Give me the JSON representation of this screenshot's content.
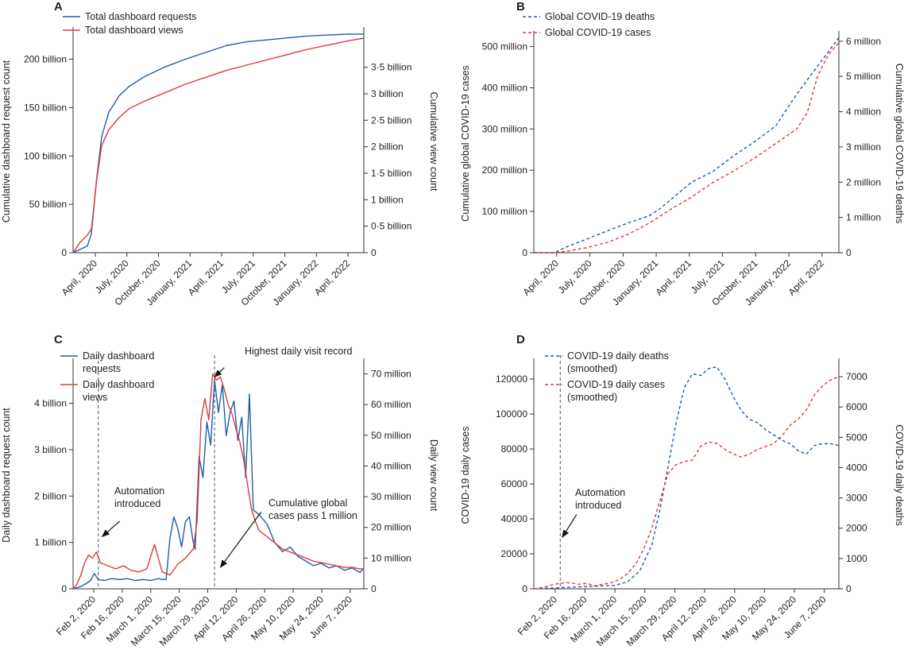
{
  "chart_data": [
    {
      "panel": "A",
      "type": "line",
      "ylabel": "Cumulative dashboard request count",
      "ylabel_right": "Cumulative view count",
      "xticks": [
        "April, 2020",
        "July, 2020",
        "October, 2020",
        "January, 2021",
        "April, 2021",
        "July, 2021",
        "October, 2021",
        "January, 2022",
        "April, 2022"
      ],
      "xlim": [
        0,
        28.5
      ],
      "ylim": [
        0,
        230
      ],
      "yticks": [
        {
          "v": 0,
          "label": "0"
        },
        {
          "v": 50,
          "label": "50 billion"
        },
        {
          "v": 100,
          "label": "100 billion"
        },
        {
          "v": 150,
          "label": "150 billion"
        },
        {
          "v": 200,
          "label": "200 billion"
        }
      ],
      "ylim_right": [
        0,
        4.2
      ],
      "yticks_right": [
        {
          "v": 0,
          "label": "0"
        },
        {
          "v": 0.5,
          "label": "0·5 billion"
        },
        {
          "v": 1,
          "label": "1 billion"
        },
        {
          "v": 1.5,
          "label": "1·5 billion"
        },
        {
          "v": 2,
          "label": "2 billion"
        },
        {
          "v": 2.5,
          "label": "2·5 billion"
        },
        {
          "v": 3,
          "label": "3 billion"
        },
        {
          "v": 3.5,
          "label": "3·5 billion"
        }
      ],
      "series": [
        {
          "name": "Total dashboard requests",
          "color": "#1f5fa8",
          "dash": "",
          "axis": "left",
          "x": [
            0,
            0.8,
            1.4,
            1.8,
            2.3,
            2.8,
            3.5,
            4.5,
            5.5,
            7,
            9,
            11,
            13,
            15,
            17,
            19,
            21,
            23,
            25,
            27,
            28.5
          ],
          "y": [
            0,
            4,
            7,
            20,
            75,
            120,
            145,
            162,
            172,
            182,
            192,
            200,
            207,
            214,
            218,
            220,
            222,
            224,
            225,
            226,
            226
          ]
        },
        {
          "name": "Total dashboard views",
          "color": "#e03a3a",
          "dash": "",
          "axis": "right",
          "x": [
            0,
            0.7,
            1.4,
            1.8,
            2.3,
            2.8,
            3.5,
            4.5,
            5.5,
            7,
            9,
            11,
            13,
            15,
            17,
            19,
            21,
            23,
            25,
            27,
            28.5
          ],
          "y": [
            0,
            0.2,
            0.33,
            0.45,
            1.35,
            2.02,
            2.32,
            2.55,
            2.72,
            2.86,
            3.02,
            3.18,
            3.31,
            3.44,
            3.54,
            3.64,
            3.74,
            3.84,
            3.92,
            4.0,
            4.05
          ]
        }
      ]
    },
    {
      "panel": "B",
      "type": "line",
      "ylabel": "Cumulative global COVID-19 cases",
      "ylabel_right": "Cumulative global COVID-19 deaths",
      "xticks": [
        "April, 2020",
        "July, 2020",
        "October, 2020",
        "January, 2021",
        "April, 2021",
        "July, 2021",
        "October, 2021",
        "January, 2022",
        "April, 2022"
      ],
      "xlim": [
        0,
        29
      ],
      "ylim": [
        0,
        530
      ],
      "yticks": [
        {
          "v": 0,
          "label": "0"
        },
        {
          "v": 100,
          "label": "100 million"
        },
        {
          "v": 200,
          "label": "200 million"
        },
        {
          "v": 300,
          "label": "300 million"
        },
        {
          "v": 400,
          "label": "400 million"
        },
        {
          "v": 500,
          "label": "500 million"
        }
      ],
      "ylim_right": [
        0,
        6.2
      ],
      "yticks_right": [
        {
          "v": 0,
          "label": "0"
        },
        {
          "v": 1,
          "label": "1 million"
        },
        {
          "v": 2,
          "label": "2 million"
        },
        {
          "v": 3,
          "label": "3 million"
        },
        {
          "v": 4,
          "label": "4 million"
        },
        {
          "v": 5,
          "label": "5 million"
        },
        {
          "v": 6,
          "label": "6 million"
        }
      ],
      "series": [
        {
          "name": "Global COVID-19 deaths",
          "color": "#1f5fa8",
          "dash": "4,3",
          "axis": "right",
          "x": [
            0,
            2,
            3,
            5,
            7,
            9,
            11,
            12,
            13,
            15,
            17,
            19,
            21,
            23,
            25,
            27,
            29
          ],
          "y": [
            0,
            0,
            0.15,
            0.38,
            0.62,
            0.85,
            1.05,
            1.25,
            1.5,
            2.0,
            2.3,
            2.75,
            3.15,
            3.6,
            4.5,
            5.3,
            6.1
          ]
        },
        {
          "name": "Global COVID-19 cases",
          "color": "#e03a3a",
          "dash": "4,3",
          "axis": "left",
          "x": [
            0,
            2,
            3,
            5,
            7,
            9,
            11,
            13,
            15,
            17,
            19,
            21,
            23,
            25,
            26,
            27,
            28,
            29
          ],
          "y": [
            0,
            0,
            3,
            12,
            25,
            45,
            72,
            105,
            135,
            170,
            198,
            230,
            265,
            300,
            340,
            430,
            480,
            510
          ]
        }
      ]
    },
    {
      "panel": "C",
      "type": "line",
      "ylabel": "Daily dashboard request count",
      "ylabel_right": "Daily view count",
      "xticks": [
        "Feb 2, 2020",
        "Feb 16, 2020",
        "March 1, 2020",
        "March 15, 2020",
        "March 29, 2020",
        "April 12, 2020",
        "April 26, 2020",
        "May 10, 2020",
        "May 24, 2020",
        "June 7, 2020"
      ],
      "xlim": [
        0,
        150
      ],
      "ylim": [
        0,
        4.9
      ],
      "yticks": [
        {
          "v": 0,
          "label": "0"
        },
        {
          "v": 1,
          "label": "1 billion"
        },
        {
          "v": 2,
          "label": "2 billion"
        },
        {
          "v": 3,
          "label": "3 billion"
        },
        {
          "v": 4,
          "label": "4 billion"
        }
      ],
      "ylim_right": [
        0,
        74
      ],
      "yticks_right": [
        {
          "v": 0,
          "label": "0"
        },
        {
          "v": 10,
          "label": "10 million"
        },
        {
          "v": 20,
          "label": "20 million"
        },
        {
          "v": 30,
          "label": "30 million"
        },
        {
          "v": 40,
          "label": "40 million"
        },
        {
          "v": 50,
          "label": "50 million"
        },
        {
          "v": 60,
          "label": "60 million"
        },
        {
          "v": 70,
          "label": "70 million"
        }
      ],
      "series": [
        {
          "name": "Daily dashboard requests",
          "legend_lines": [
            "Daily dashboard",
            "requests"
          ],
          "color": "#1f5fa8",
          "dash": "",
          "axis": "left",
          "x": [
            0,
            4,
            7,
            9,
            11,
            13,
            16,
            20,
            24,
            28,
            32,
            36,
            40,
            44,
            46,
            48,
            50,
            52,
            54,
            56,
            58,
            60,
            62,
            63,
            65,
            67,
            69,
            71,
            73,
            75,
            77,
            79,
            81,
            83,
            85,
            87,
            89,
            91,
            93,
            96,
            100,
            104,
            108,
            112,
            116,
            120,
            124,
            128,
            132,
            136,
            140,
            144,
            148,
            150
          ],
          "y": [
            0,
            0.05,
            0.12,
            0.18,
            0.33,
            0.2,
            0.18,
            0.22,
            0.2,
            0.22,
            0.18,
            0.2,
            0.18,
            0.22,
            0.2,
            0.2,
            1.1,
            1.55,
            1.3,
            0.9,
            1.45,
            1.55,
            1.0,
            0.85,
            2.85,
            2.4,
            3.6,
            3.1,
            4.5,
            3.8,
            4.4,
            3.3,
            3.8,
            4.05,
            3.2,
            3.7,
            2.4,
            4.2,
            1.7,
            1.6,
            1.4,
            1.0,
            0.8,
            0.9,
            0.7,
            0.6,
            0.5,
            0.55,
            0.45,
            0.5,
            0.4,
            0.45,
            0.35,
            0.45
          ]
        },
        {
          "name": "Daily dashboard views",
          "legend_lines": [
            "Daily dashboard",
            "views"
          ],
          "color": "#e03a3a",
          "dash": "",
          "axis": "right",
          "x": [
            0,
            2,
            4,
            6,
            8,
            10,
            12,
            14,
            18,
            22,
            26,
            30,
            34,
            38,
            42,
            46,
            50,
            54,
            58,
            62,
            64,
            66,
            68,
            70,
            72,
            74,
            76,
            78,
            80,
            82,
            84,
            86,
            88,
            90,
            92,
            94,
            96,
            100,
            104,
            108,
            112,
            116,
            120,
            124,
            128,
            132,
            136,
            140,
            144,
            148,
            150
          ],
          "y": [
            0,
            1.5,
            4.5,
            8.5,
            11,
            10,
            12,
            8.5,
            7.5,
            6.5,
            7.5,
            6,
            5.5,
            6.5,
            14.5,
            5.5,
            4.5,
            8,
            10,
            13,
            22,
            55,
            62,
            55,
            70,
            68,
            69,
            65,
            60,
            57,
            52,
            48,
            42,
            34,
            26,
            22,
            19,
            17,
            15,
            13,
            12,
            11,
            10,
            9,
            8.5,
            8,
            7.5,
            7,
            7,
            6.5,
            6.5
          ]
        }
      ],
      "vlines": [
        13,
        73
      ],
      "annotations": [
        {
          "lines": [
            "Highest daily visit record"
          ],
          "arrow_from": [
            78,
            72
          ],
          "arrow_to": [
            73,
            69
          ]
        },
        {
          "lines": [
            "Automation",
            "introduced"
          ],
          "arrow_from": [
            24,
            22
          ],
          "arrow_to": [
            15,
            17
          ]
        },
        {
          "lines": [
            "Cumulative global",
            "cases pass 1 million"
          ],
          "arrow_from": [
            97,
            25
          ],
          "arrow_to": [
            76,
            7
          ]
        }
      ]
    },
    {
      "panel": "D",
      "type": "line",
      "ylabel": "COVID-19 daily cases",
      "ylabel_right": "COVID-19 daily deaths",
      "xticks": [
        "Feb 2, 2020",
        "Feb 16, 2020",
        "March 1, 2020",
        "March 15, 2020",
        "March 29, 2020",
        "April 12, 2020",
        "April 26, 2020",
        "May 10, 2020",
        "May 24, 2020",
        "June 7, 2020"
      ],
      "xlim": [
        0,
        150
      ],
      "ylim": [
        0,
        130000
      ],
      "yticks": [
        {
          "v": 0,
          "label": "0"
        },
        {
          "v": 20000,
          "label": "20000"
        },
        {
          "v": 40000,
          "label": "40000"
        },
        {
          "v": 60000,
          "label": "60000"
        },
        {
          "v": 80000,
          "label": "80000"
        },
        {
          "v": 100000,
          "label": "100000"
        },
        {
          "v": 120000,
          "label": "120000"
        }
      ],
      "ylim_right": [
        0,
        7500
      ],
      "yticks_right": [
        {
          "v": 0,
          "label": "0"
        },
        {
          "v": 1000,
          "label": "1000"
        },
        {
          "v": 2000,
          "label": "2000"
        },
        {
          "v": 3000,
          "label": "3000"
        },
        {
          "v": 4000,
          "label": "4000"
        },
        {
          "v": 5000,
          "label": "5000"
        },
        {
          "v": 6000,
          "label": "6000"
        },
        {
          "v": 7000,
          "label": "7000"
        }
      ],
      "series": [
        {
          "name": "COVID-19 daily deaths (smoothed)",
          "legend_lines": [
            "COVID-19 daily deaths",
            "(smoothed)"
          ],
          "color": "#1f5fa8",
          "dash": "4,3",
          "axis": "left",
          "x": [
            0,
            10,
            20,
            30,
            40,
            46,
            52,
            58,
            62,
            66,
            70,
            74,
            78,
            82,
            86,
            90,
            94,
            98,
            102,
            106,
            110,
            114,
            118,
            122,
            126,
            130,
            134,
            138,
            142,
            146,
            150
          ],
          "y": [
            0,
            500,
            1000,
            1500,
            2000,
            4000,
            10000,
            25000,
            45000,
            70000,
            95000,
            115000,
            123000,
            122000,
            126000,
            127000,
            120000,
            110000,
            102000,
            97000,
            95000,
            91000,
            88000,
            85000,
            83000,
            79000,
            77000,
            82000,
            83000,
            83000,
            82000
          ]
        },
        {
          "name": "COVID-19 daily cases (smoothed)",
          "legend_lines": [
            "COVID-19 daily cases",
            "(smoothed)"
          ],
          "color": "#e03a3a",
          "dash": "4,3",
          "axis": "right",
          "x": [
            0,
            5,
            10,
            15,
            18,
            22,
            26,
            30,
            34,
            38,
            42,
            46,
            50,
            54,
            58,
            62,
            66,
            70,
            74,
            78,
            82,
            86,
            90,
            94,
            98,
            102,
            106,
            110,
            114,
            118,
            122,
            126,
            130,
            134,
            138,
            142,
            146,
            150
          ],
          "y": [
            0,
            50,
            150,
            200,
            200,
            150,
            180,
            100,
            150,
            200,
            300,
            500,
            800,
            1300,
            2000,
            2900,
            3800,
            4100,
            4200,
            4250,
            4700,
            4850,
            4800,
            4600,
            4450,
            4350,
            4450,
            4600,
            4700,
            4800,
            5050,
            5400,
            5600,
            5900,
            6400,
            6700,
            6900,
            7000
          ]
        }
      ],
      "vlines": [
        13
      ],
      "annotations": [
        {
          "lines": [
            "Automation",
            "introduced"
          ],
          "arrow_from": [
            21,
            2450
          ],
          "arrow_to": [
            14,
            1700
          ]
        }
      ]
    }
  ]
}
